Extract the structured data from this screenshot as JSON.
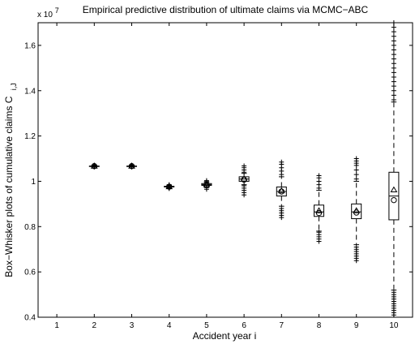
{
  "chart_data": {
    "type": "box",
    "title": "Empirical predictive distribution of ultimate claims via MCMC−ABC",
    "xlabel": "Accident year i",
    "ylabel_main": "Box−Whisker plots of cumulative claims C",
    "ylabel_sub": "i,J",
    "y_multiplier_base": "x 10",
    "y_multiplier_exp": "7",
    "xlim": [
      0.5,
      10.5
    ],
    "ylim": [
      0.4,
      1.7
    ],
    "x_ticks": [
      "1",
      "2",
      "3",
      "4",
      "5",
      "6",
      "7",
      "8",
      "9",
      "10"
    ],
    "y_ticks": [
      "0.4",
      "0.6",
      "0.8",
      "1",
      "1.2",
      "1.4",
      "1.6"
    ],
    "boxes": [
      {
        "year": 2,
        "q1": 1.067,
        "median": 1.067,
        "q3": 1.067,
        "whisker_low": 1.065,
        "whisker_high": 1.07,
        "mean": 1.067,
        "observed": 1.067,
        "outliers_low": [
          1.063,
          1.066
        ],
        "outliers_high": [
          1.068,
          1.071
        ]
      },
      {
        "year": 3,
        "q1": 1.067,
        "median": 1.067,
        "q3": 1.067,
        "whisker_low": 1.065,
        "whisker_high": 1.07,
        "mean": 1.067,
        "observed": 1.067,
        "outliers_low": [
          1.063,
          1.066
        ],
        "outliers_high": [
          1.068,
          1.071
        ]
      },
      {
        "year": 4,
        "q1": 0.975,
        "median": 0.976,
        "q3": 0.978,
        "whisker_low": 0.971,
        "whisker_high": 0.982,
        "mean": 0.976,
        "observed": 0.976,
        "outliers_low": [
          0.968,
          0.97
        ],
        "outliers_high": [
          0.983,
          0.985
        ]
      },
      {
        "year": 5,
        "q1": 0.982,
        "median": 0.985,
        "q3": 0.99,
        "whisker_low": 0.975,
        "whisker_high": 0.997,
        "mean": 0.985,
        "observed": 0.985,
        "outliers_low": [
          0.965,
          0.972
        ],
        "outliers_high": [
          0.999,
          1.003
        ]
      },
      {
        "year": 6,
        "q1": 1.0,
        "median": 1.01,
        "q3": 1.02,
        "whisker_low": 0.985,
        "whisker_high": 1.035,
        "mean": 1.01,
        "observed": 1.007,
        "outliers_low": [
          0.94,
          0.95,
          0.96,
          0.97,
          0.98
        ],
        "outliers_high": [
          1.04,
          1.05,
          1.06,
          1.068
        ]
      },
      {
        "year": 7,
        "q1": 0.935,
        "median": 0.955,
        "q3": 0.975,
        "whisker_low": 0.89,
        "whisker_high": 1.02,
        "mean": 0.958,
        "observed": 0.955,
        "outliers_low": [
          0.84,
          0.85,
          0.86,
          0.87,
          0.88
        ],
        "outliers_high": [
          1.03,
          1.045,
          1.06,
          1.075,
          1.085
        ]
      },
      {
        "year": 8,
        "q1": 0.845,
        "median": 0.865,
        "q3": 0.895,
        "whisker_low": 0.78,
        "whisker_high": 0.96,
        "mean": 0.87,
        "observed": 0.86,
        "outliers_low": [
          0.735,
          0.745,
          0.755,
          0.765,
          0.775
        ],
        "outliers_high": [
          0.97,
          0.985,
          1.0,
          1.015,
          1.025
        ]
      },
      {
        "year": 9,
        "q1": 0.835,
        "median": 0.865,
        "q3": 0.9,
        "whisker_low": 0.72,
        "whisker_high": 1.0,
        "mean": 0.87,
        "observed": 0.862,
        "outliers_low": [
          0.65,
          0.66,
          0.67,
          0.68,
          0.69,
          0.7,
          0.71
        ],
        "outliers_high": [
          1.01,
          1.03,
          1.05,
          1.07,
          1.08,
          1.09,
          1.1
        ]
      },
      {
        "year": 10,
        "q1": 0.83,
        "median": 0.935,
        "q3": 1.04,
        "whisker_low": 0.52,
        "whisker_high": 1.35,
        "mean": 0.962,
        "observed": 0.917,
        "outliers_low": [
          0.41,
          0.42,
          0.43,
          0.44,
          0.45,
          0.46,
          0.47,
          0.48,
          0.49,
          0.5,
          0.51
        ],
        "outliers_high": [
          1.36,
          1.38,
          1.4,
          1.42,
          1.44,
          1.46,
          1.48,
          1.5,
          1.52,
          1.54,
          1.56,
          1.58,
          1.6,
          1.62,
          1.64,
          1.66,
          1.68,
          1.7
        ]
      }
    ]
  }
}
